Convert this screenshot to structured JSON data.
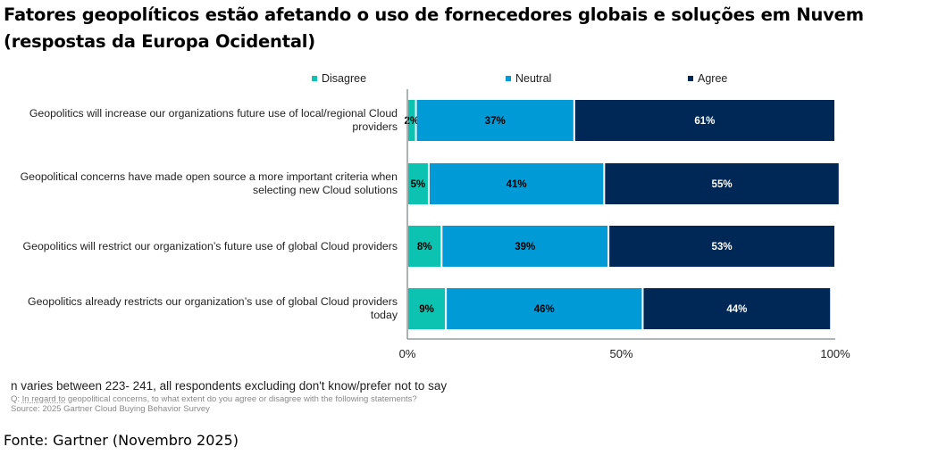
{
  "title": "Fatores geopolíticos estão afetando o uso de fornecedores globais e soluções em Nuvem (respostas da Europa Ocidental)",
  "chart_data": {
    "type": "bar",
    "orientation": "horizontal",
    "stacked": true,
    "percent_stacked": true,
    "title": "Fatores geopolíticos estão afetando o uso de fornecedores globais e soluções em Nuvem (respostas da Europa Ocidental)",
    "categories": [
      "Geopolitics will increase our organizations future use of local/regional Cloud providers",
      "Geopolitical concerns have made open source a more important criteria when selecting new Cloud solutions",
      "Geopolitics will restrict our organization’s future use of global Cloud providers",
      "Geopolitics already restricts our organization’s use of global Cloud providers today"
    ],
    "series": [
      {
        "name": "Disagree",
        "color": "#0bc3b0",
        "label_color": "#000000",
        "values": [
          2,
          5,
          8,
          9
        ]
      },
      {
        "name": "Neutral",
        "color": "#009ad7",
        "label_color": "#000000",
        "values": [
          37,
          41,
          39,
          46
        ]
      },
      {
        "name": "Agree",
        "color": "#002856",
        "label_color": "#ffffff",
        "values": [
          61,
          55,
          53,
          44
        ]
      }
    ],
    "xlabel": "",
    "ylabel": "",
    "xlim": [
      0,
      100
    ],
    "x_ticks": [
      "0%",
      "50%",
      "100%"
    ],
    "legend_position": "top",
    "grid": false
  },
  "legend": [
    "Disagree",
    "Neutral",
    "Agree"
  ],
  "category_lines": [
    [
      "Geopolitics will increase our organizations future use of local/regional Cloud",
      "providers"
    ],
    [
      "Geopolitical concerns have made open source a more important criteria when",
      "selecting new Cloud solutions"
    ],
    [
      "Geopolitics will restrict our organization’s future use of global Cloud providers"
    ],
    [
      "Geopolitics already restricts our organization’s use of global Cloud providers",
      "today"
    ]
  ],
  "notes": {
    "n_note": "n varies between 223- 241, all respondents excluding don't know/prefer not to say",
    "question_prefix": "Q: ",
    "question_underlined": "In regard to",
    "question_rest": " geopolitical concerns, to what extent do you agree or disagree with the following statements?",
    "source": "Source: 2025 Gartner Cloud Buying Behavior Survey"
  },
  "fonte": "Fonte: Gartner (Novembro 2025)"
}
